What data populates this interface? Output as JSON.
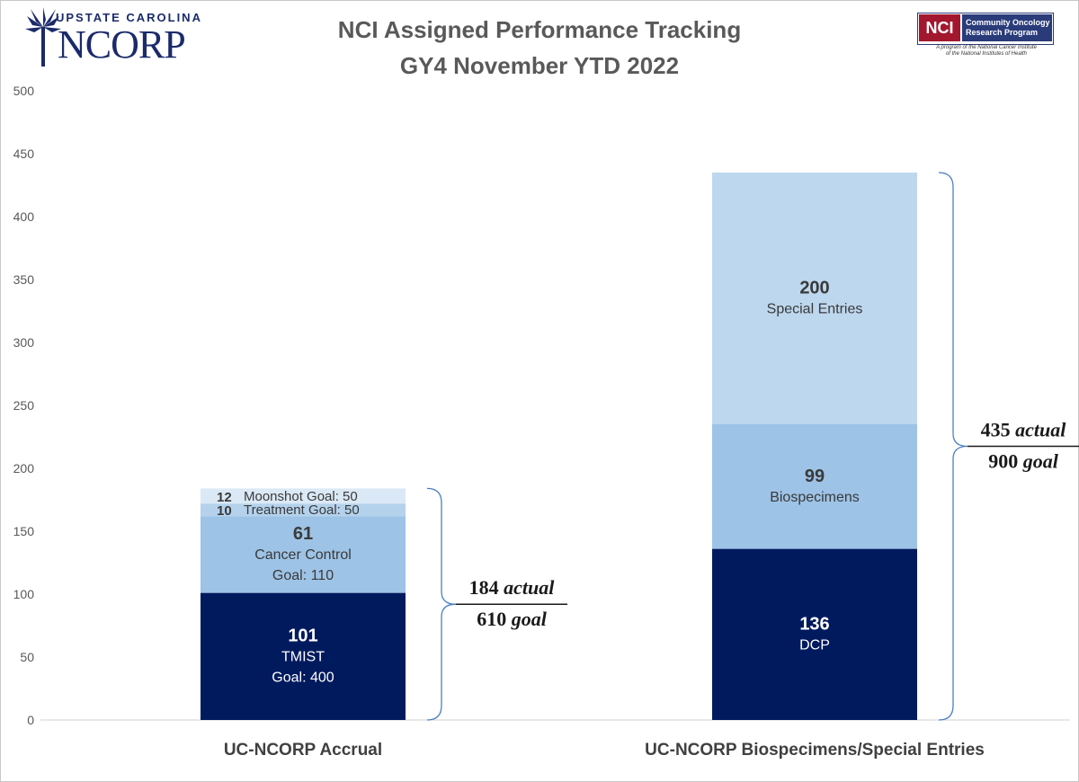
{
  "logos": {
    "left": {
      "top_text": "UPSTATE CAROLINA",
      "big_text": "NCORP",
      "icon": "palmetto-tree-icon"
    },
    "right": {
      "badge": "NCI",
      "program_line1": "Community Oncology",
      "program_line2": "Research Program",
      "sub_line1": "A program of the National Cancer Institute",
      "sub_line2": "of the National Institutes of Health"
    }
  },
  "chart_data": {
    "type": "bar",
    "stacked": true,
    "title": "NCI Assigned Performance Tracking",
    "subtitle": "GY4 November YTD 2022",
    "xlabel": "",
    "ylabel": "",
    "ylim": [
      0,
      500
    ],
    "yticks": [
      "0",
      "50",
      "100",
      "150",
      "200",
      "250",
      "300",
      "350",
      "400",
      "450",
      "500"
    ],
    "grid": false,
    "legend": "none",
    "categories": [
      "UC-NCORP Accrual",
      "UC-NCORP Biospecimens/Special Entries"
    ],
    "bars": [
      {
        "category": "UC-NCORP Accrual",
        "segments": [
          {
            "value": 101,
            "value_label": "101",
            "label": "TMIST",
            "goal_label": "Goal: 400",
            "color": "#001a5e",
            "text_color": "#ffffff"
          },
          {
            "value": 61,
            "value_label": "61",
            "label": "Cancer Control",
            "goal_label": "Goal: 110",
            "color": "#9dc3e6",
            "text_color": "#3a3a3a"
          },
          {
            "value": 10,
            "value_label": "10",
            "label": "Treatment Goal: 50",
            "goal_label": "",
            "color": "#b4d2ec",
            "text_color": "#3a3a3a"
          },
          {
            "value": 12,
            "value_label": "12",
            "label": "Moonshot Goal: 50",
            "goal_label": "",
            "color": "#dbe9f6",
            "text_color": "#3a3a3a"
          }
        ],
        "total": {
          "actual": "184",
          "actual_word": "actual",
          "goal": "610",
          "goal_word": "goal"
        }
      },
      {
        "category": "UC-NCORP Biospecimens/Special Entries",
        "segments": [
          {
            "value": 136,
            "value_label": "136",
            "label": "DCP",
            "goal_label": "",
            "color": "#001a5e",
            "text_color": "#ffffff"
          },
          {
            "value": 99,
            "value_label": "99",
            "label": "Biospecimens",
            "goal_label": "",
            "color": "#9dc3e6",
            "text_color": "#3a3a3a"
          },
          {
            "value": 200,
            "value_label": "200",
            "label": "Special Entries",
            "goal_label": "",
            "color": "#bdd7ee",
            "text_color": "#3a3a3a"
          }
        ],
        "total": {
          "actual": "435",
          "actual_word": "actual",
          "goal": "900",
          "goal_word": "goal"
        }
      }
    ],
    "colors": {
      "axis_text": "#595959",
      "title": "#595959",
      "category_label": "#404040",
      "bracket": "#4a7fc1",
      "baseline": "#d0d0d0"
    }
  }
}
